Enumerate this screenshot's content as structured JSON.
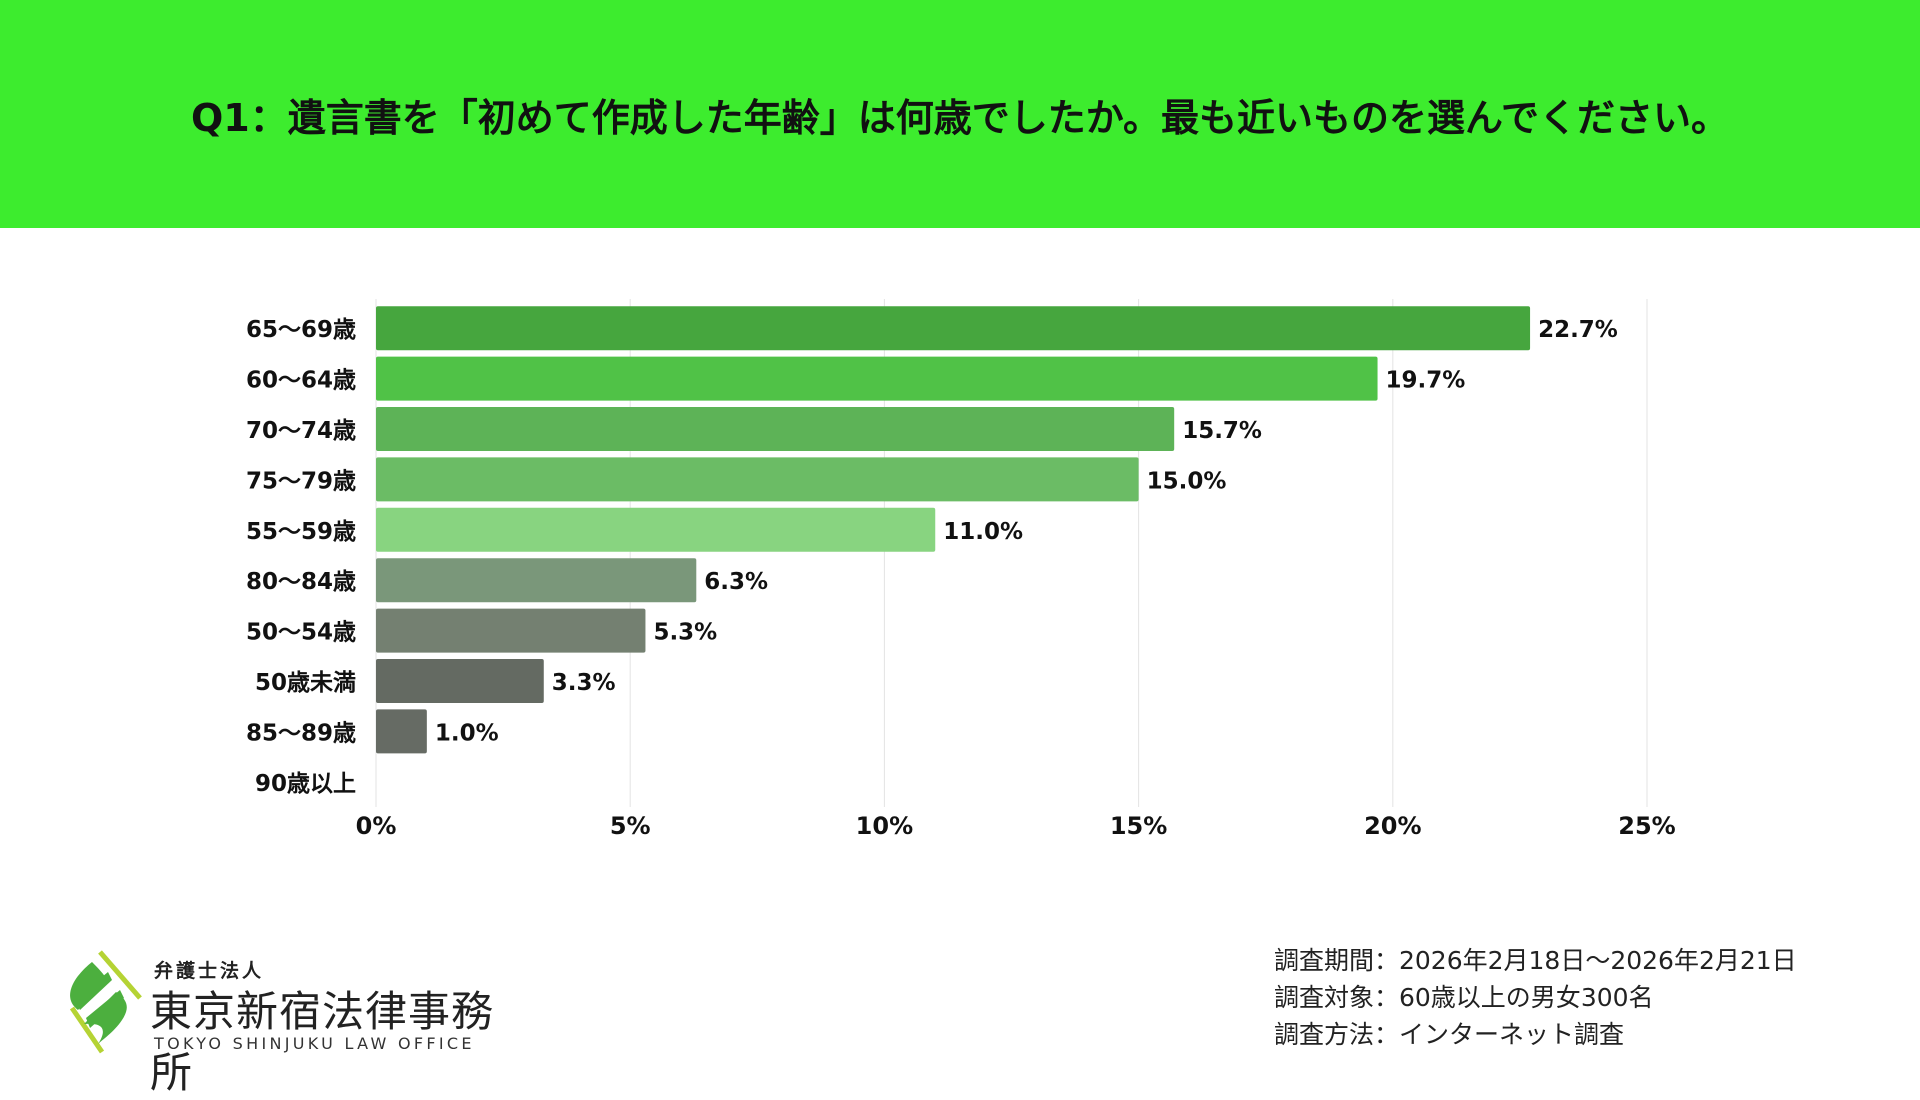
{
  "header": {
    "title": "Q1：遺言書を「初めて作成した年齢」は何歳でしたか。最も近いものを選んでください。",
    "bg_color": "#3DEC2E"
  },
  "chart_data": {
    "type": "bar",
    "orientation": "horizontal",
    "categories": [
      "65〜69歳",
      "60〜64歳",
      "70〜74歳",
      "75〜79歳",
      "55〜59歳",
      "80〜84歳",
      "50〜54歳",
      "50歳未満",
      "85〜89歳",
      "90歳以上"
    ],
    "values": [
      22.7,
      19.7,
      15.7,
      15.0,
      11.0,
      6.3,
      5.3,
      3.3,
      1.0,
      0
    ],
    "data_labels": [
      "22.7%",
      "19.7%",
      "15.7%",
      "15.0%",
      "11.0%",
      "6.3%",
      "5.3%",
      "3.3%",
      "1.0%",
      ""
    ],
    "colors": [
      "#46A63E",
      "#50C247",
      "#5DB357",
      "#6BBC65",
      "#88D480",
      "#7A977A",
      "#748071",
      "#646A62",
      "#666B64",
      "#666B64"
    ],
    "xlim": [
      0,
      25
    ],
    "xticks": [
      0,
      5,
      10,
      15,
      20,
      25
    ],
    "xtick_labels": [
      "0%",
      "5%",
      "10%",
      "15%",
      "20%",
      "25%"
    ],
    "grid": true,
    "title": "",
    "xlabel": "",
    "ylabel": ""
  },
  "footer": {
    "lines": [
      "調査期間：2026年2月18日〜2026年2月21日",
      "調査対象：60歳以上の男女300名",
      "調査方法：インターネット調査"
    ]
  },
  "logo": {
    "sub": "弁護士法人",
    "main": "東京新宿法律事務所",
    "en": "TOKYO SHINJUKU LAW OFFICE"
  }
}
